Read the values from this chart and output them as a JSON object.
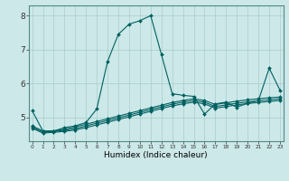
{
  "title": "",
  "xlabel": "Humidex (Indice chaleur)",
  "ylabel": "",
  "background_color": "#cce8e8",
  "grid_color": "#aacccc",
  "line_color": "#006060",
  "xlim": [
    0,
    23
  ],
  "ylim": [
    4.3,
    8.3
  ],
  "x_ticks": [
    0,
    1,
    2,
    3,
    4,
    5,
    6,
    7,
    8,
    9,
    10,
    11,
    12,
    13,
    14,
    15,
    16,
    17,
    18,
    19,
    20,
    21,
    22,
    23
  ],
  "y_ticks": [
    5,
    6,
    7,
    8
  ],
  "series": [
    [
      5.2,
      4.6,
      4.6,
      4.7,
      4.75,
      4.85,
      5.25,
      6.65,
      7.45,
      7.75,
      7.85,
      8.0,
      6.85,
      5.7,
      5.65,
      5.62,
      5.1,
      5.4,
      5.45,
      5.3,
      5.42,
      5.5,
      6.45,
      5.8
    ],
    [
      4.75,
      4.6,
      4.6,
      4.65,
      4.72,
      4.8,
      4.88,
      4.96,
      5.04,
      5.12,
      5.2,
      5.28,
      5.36,
      5.44,
      5.5,
      5.55,
      5.5,
      5.38,
      5.43,
      5.48,
      5.52,
      5.55,
      5.58,
      5.6
    ],
    [
      4.72,
      4.57,
      4.59,
      4.62,
      4.67,
      4.75,
      4.83,
      4.91,
      4.99,
      5.07,
      5.15,
      5.23,
      5.31,
      5.39,
      5.45,
      5.5,
      5.45,
      5.32,
      5.37,
      5.42,
      5.46,
      5.49,
      5.52,
      5.55
    ],
    [
      4.68,
      4.54,
      4.56,
      4.59,
      4.63,
      4.7,
      4.78,
      4.86,
      4.94,
      5.02,
      5.1,
      5.18,
      5.26,
      5.34,
      5.4,
      5.45,
      5.4,
      5.27,
      5.32,
      5.37,
      5.41,
      5.44,
      5.47,
      5.5
    ]
  ]
}
